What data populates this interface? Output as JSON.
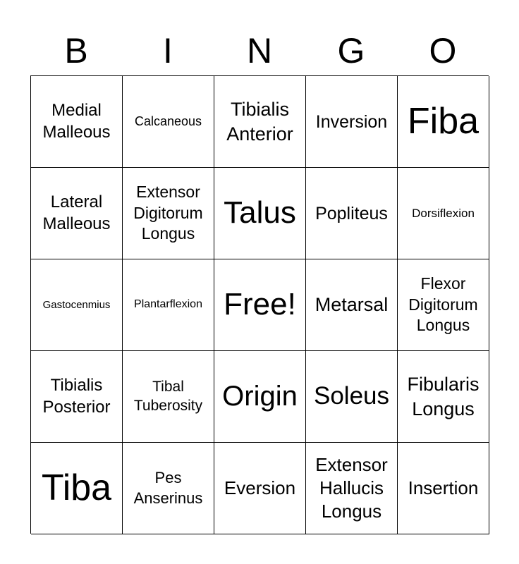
{
  "header": [
    "B",
    "I",
    "N",
    "G",
    "O"
  ],
  "cells": [
    "Medial Malleous",
    "Calcaneous",
    "Tibialis Anterior",
    "Inversion",
    "Fiba",
    "Lateral Malleous",
    "Extensor Digitorum Longus",
    "Talus",
    "Popliteus",
    "Dorsiflexion",
    "Gastocenmius",
    "Plantarflexion",
    "Free!",
    "Metarsal",
    "Flexor Digitorum Longus",
    "Tibialis Posterior",
    "Tibal Tuberosity",
    "Origin",
    "Soleus",
    "Fibularis Longus",
    "Tiba",
    "Pes Anserinus",
    "Eversion",
    "Extensor Hallucis Longus",
    "Insertion"
  ]
}
